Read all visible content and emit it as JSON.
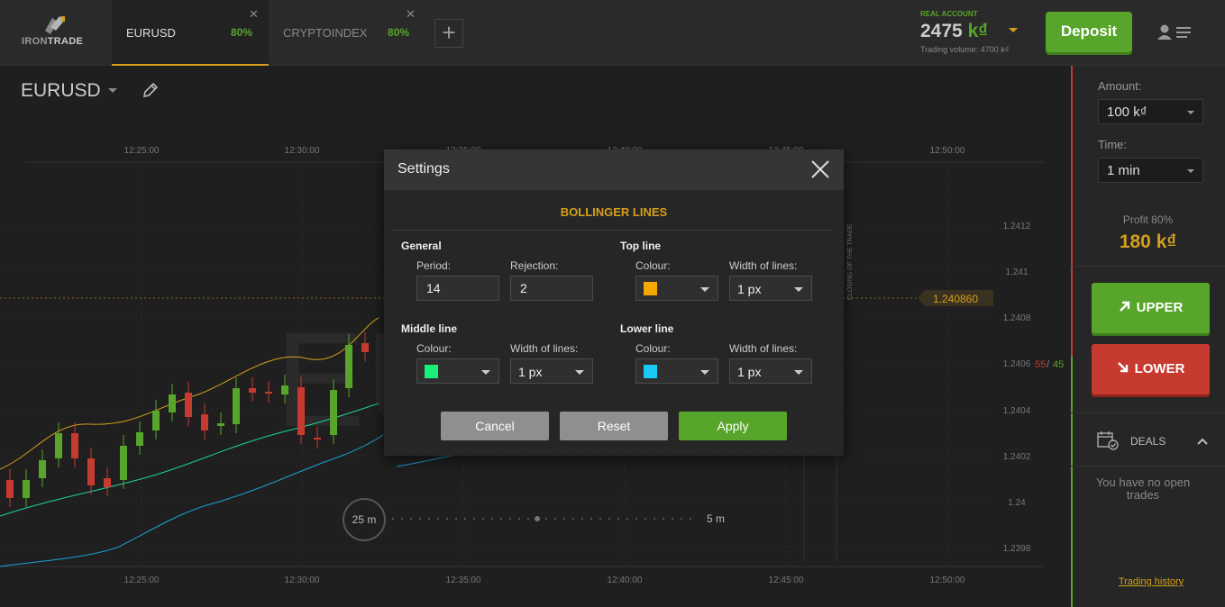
{
  "header": {
    "logo": {
      "part1": "IRON",
      "part2": "TRADE"
    },
    "tabs": [
      {
        "name": "EURUSD",
        "payout": "80%"
      },
      {
        "name": "CRYPTOINDEX",
        "payout": "80%"
      }
    ],
    "close_glyph": "✕",
    "add_tab_glyph": "+",
    "account": {
      "label": "REAL ACCOUNT",
      "balance": "2475",
      "currency": "k₫",
      "volume": "Trading volume: 4700 k₫"
    },
    "deposit_label": "Deposit"
  },
  "chart": {
    "symbol": "EURUSD",
    "watermark": "EU",
    "time_labels": [
      "12:25:00",
      "12:30:00",
      "12:35:00",
      "12:40:00",
      "12:45:00",
      "12:50:00"
    ],
    "price_labels": [
      "1.2412",
      "1.241",
      "1.2408",
      "1.2406",
      "1.2404",
      "1.2402",
      "1.24",
      "1.2398"
    ],
    "current_price": "1.240860",
    "ratio": {
      "down": "55",
      "sep": "/",
      "up": "45"
    },
    "closing_label": "CLOSING OF THE TRADE",
    "timer": {
      "left": "25 m",
      "right": "5 m"
    },
    "colors": {
      "up": "#57a52a",
      "down": "#c73a2f",
      "top_line": "#d4a01c",
      "middle_line": "#1bd49a",
      "lower_line": "#1aa3d4"
    }
  },
  "sidebar": {
    "amount_label": "Amount:",
    "amount_value": "100 k₫",
    "time_label": "Time:",
    "time_value": "1 min",
    "profit_label": "Profit 80%",
    "profit_value": "180 k₫",
    "upper_label": "UPPER",
    "lower_label": "LOWER",
    "deals_label": "DEALS",
    "no_trades": "You have no open trades",
    "history_link": "Trading history"
  },
  "modal": {
    "title": "Settings",
    "section": "BOLLINGER LINES",
    "general": {
      "title": "General",
      "period_label": "Period:",
      "period_value": "14",
      "rejection_label": "Rejection:",
      "rejection_value": "2"
    },
    "top_line": {
      "title": "Top line",
      "colour_label": "Colour:",
      "colour": "#f5a800",
      "width_label": "Width of lines:",
      "width_value": "1 px"
    },
    "middle_line": {
      "title": "Middle line",
      "colour_label": "Colour:",
      "colour": "#18f07a",
      "width_label": "Width of lines:",
      "width_value": "1 px"
    },
    "lower_line": {
      "title": "Lower line",
      "colour_label": "Colour:",
      "colour": "#18c8f5",
      "width_label": "Width of lines:",
      "width_value": "1 px"
    },
    "cancel_label": "Cancel",
    "reset_label": "Reset",
    "apply_label": "Apply"
  }
}
